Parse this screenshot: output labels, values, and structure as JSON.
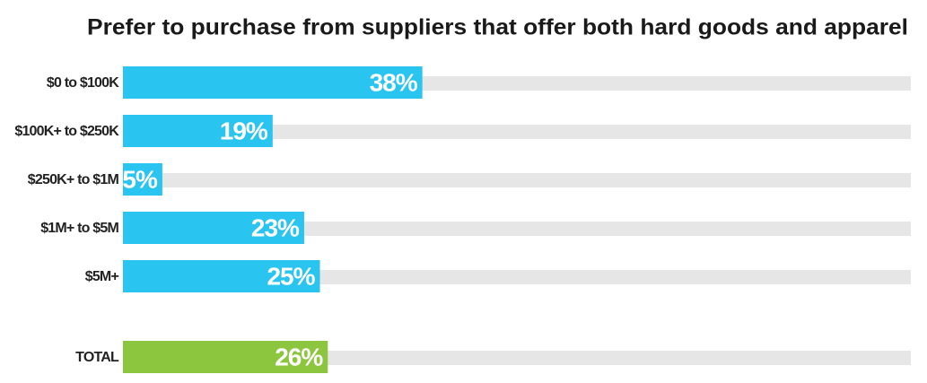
{
  "chart_data": {
    "type": "bar",
    "orientation": "horizontal",
    "title": "Prefer to purchase from suppliers that offer both hard goods and apparel",
    "categories": [
      "$0 to $100K",
      "$100K+ to $250K",
      "$250K+ to $1M",
      "$1M+ to $5M",
      "$5M+",
      "TOTAL"
    ],
    "values": [
      38,
      19,
      5,
      23,
      25,
      26
    ],
    "value_labels": [
      "38%",
      "19%",
      "5%",
      "23%",
      "25%",
      "26%"
    ],
    "colors": [
      "#29c4f0",
      "#29c4f0",
      "#29c4f0",
      "#29c4f0",
      "#29c4f0",
      "#8cc63f"
    ],
    "xlim": [
      0,
      100
    ]
  }
}
